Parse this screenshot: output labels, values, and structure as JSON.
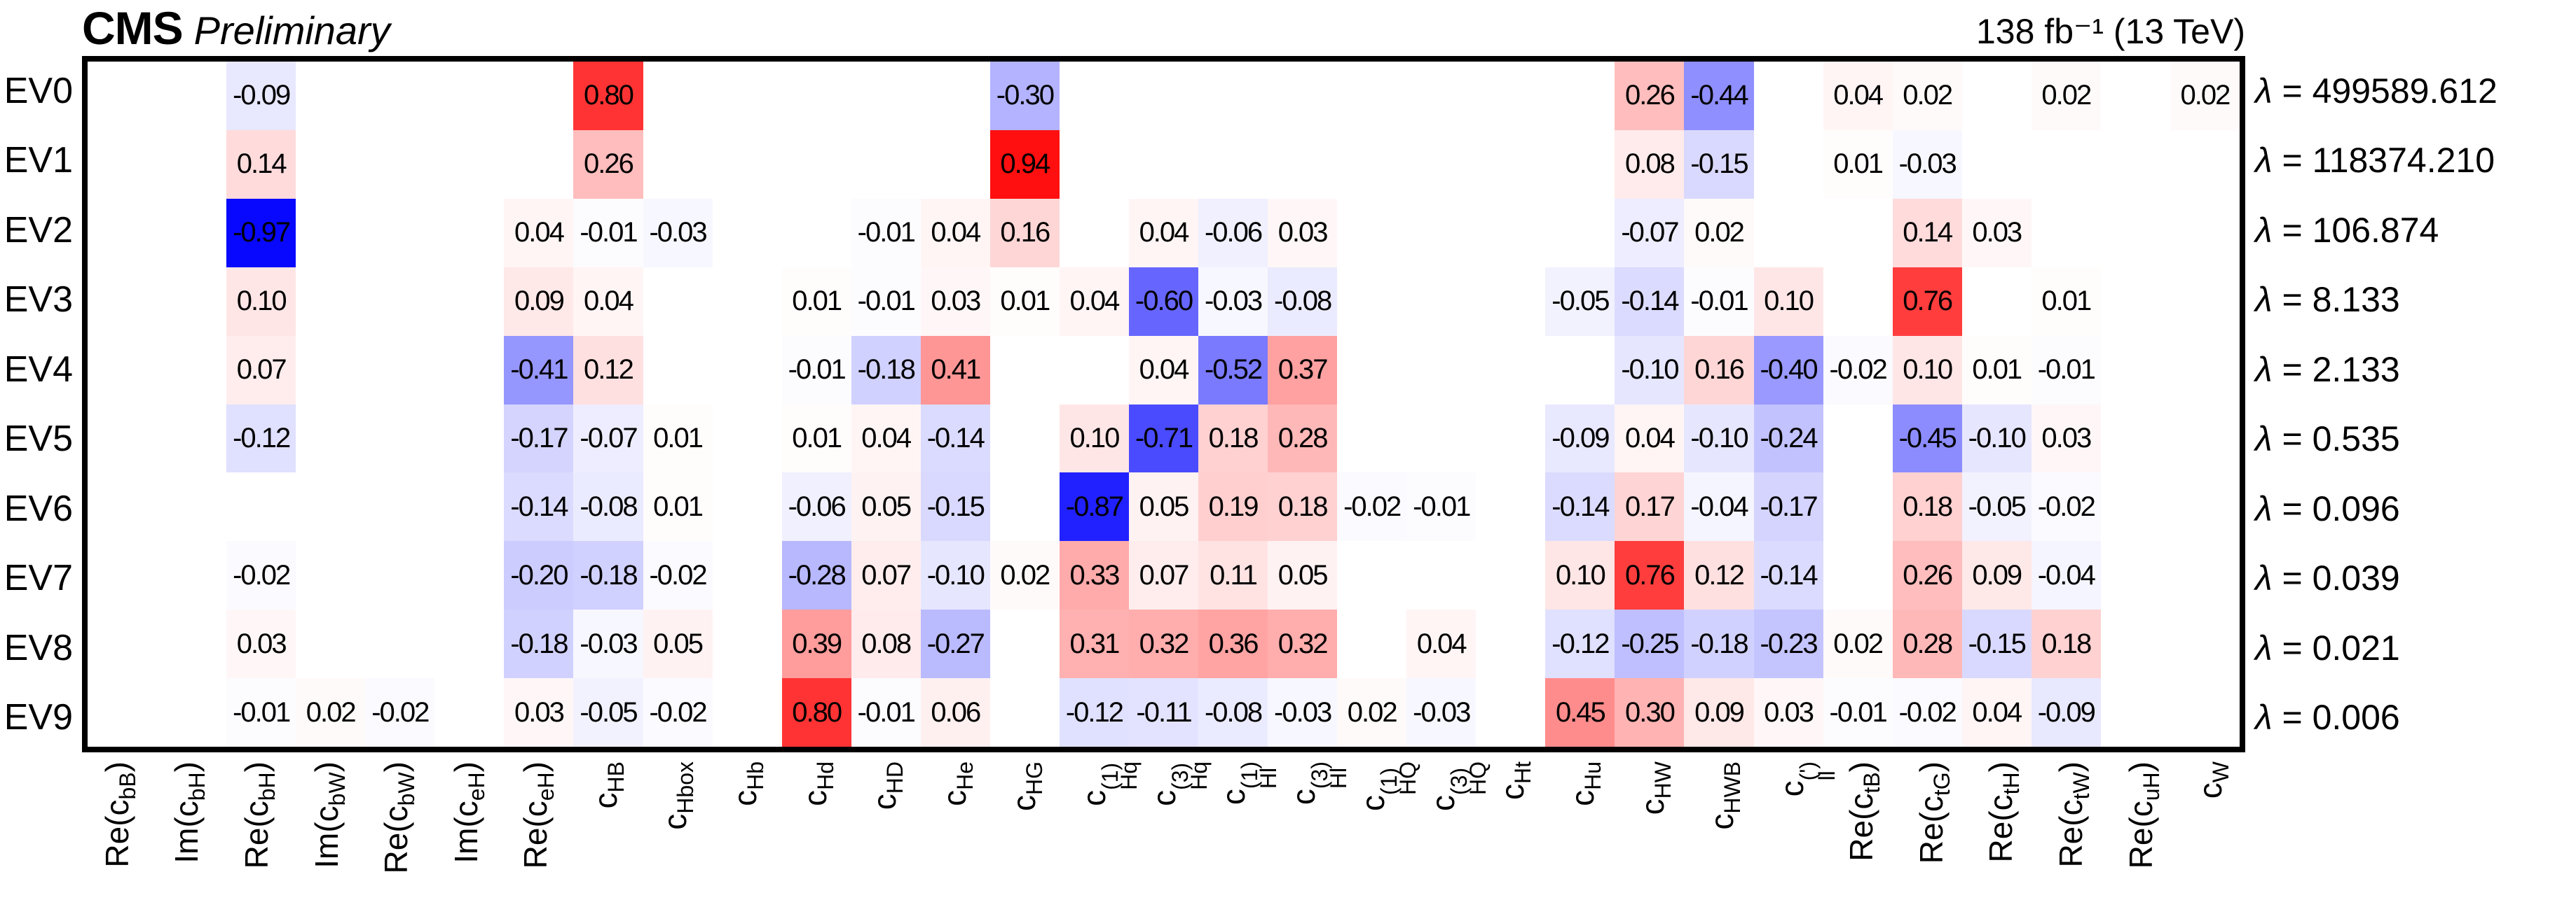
{
  "header": {
    "experiment": "CMS",
    "status": "Preliminary",
    "luminosity": "138 fb⁻¹ (13 TeV)"
  },
  "chart_data": {
    "type": "heatmap",
    "title": "Principal component decomposition of SMEFT Wilson coefficients",
    "lambda_symbol": "λ",
    "lambda_equals": " = ",
    "colormap": {
      "negative": "#0000ff",
      "zero": "#ffffff",
      "positive": "#ff0000",
      "range": [
        -1,
        1
      ]
    },
    "grid": false,
    "columns": [
      {
        "label_text": "Re(c_bB)",
        "pre": "Re(c",
        "sub": "bB",
        "sup": "",
        "post": ")"
      },
      {
        "label_text": "Im(c_bH)",
        "pre": "Im(c",
        "sub": "bH",
        "sup": "",
        "post": ")"
      },
      {
        "label_text": "Re(c_bH)",
        "pre": "Re(c",
        "sub": "bH",
        "sup": "",
        "post": ")"
      },
      {
        "label_text": "Im(c_bW)",
        "pre": "Im(c",
        "sub": "bW",
        "sup": "",
        "post": ")"
      },
      {
        "label_text": "Re(c_bW)",
        "pre": "Re(c",
        "sub": "bW",
        "sup": "",
        "post": ")"
      },
      {
        "label_text": "Im(c_eH)",
        "pre": "Im(c",
        "sub": "eH",
        "sup": "",
        "post": ")"
      },
      {
        "label_text": "Re(c_eH)",
        "pre": "Re(c",
        "sub": "eH",
        "sup": "",
        "post": ")"
      },
      {
        "label_text": "c_HB",
        "pre": "c",
        "sub": "HB",
        "sup": "",
        "post": ""
      },
      {
        "label_text": "c_Hbox",
        "pre": "c",
        "sub": "Hbox",
        "sup": "",
        "post": ""
      },
      {
        "label_text": "c_Hb",
        "pre": "c",
        "sub": "Hb",
        "sup": "",
        "post": ""
      },
      {
        "label_text": "c_Hd",
        "pre": "c",
        "sub": "Hd",
        "sup": "",
        "post": ""
      },
      {
        "label_text": "c_HD",
        "pre": "c",
        "sub": "HD",
        "sup": "",
        "post": ""
      },
      {
        "label_text": "c_He",
        "pre": "c",
        "sub": "He",
        "sup": "",
        "post": ""
      },
      {
        "label_text": "c_HG",
        "pre": "c",
        "sub": "HG",
        "sup": "",
        "post": ""
      },
      {
        "label_text": "c_Hq^(1)",
        "pre": "c",
        "sub": "Hq",
        "sup": "(1)",
        "post": ""
      },
      {
        "label_text": "c_Hq^(3)",
        "pre": "c",
        "sub": "Hq",
        "sup": "(3)",
        "post": ""
      },
      {
        "label_text": "c_Hl^(1)",
        "pre": "c",
        "sub": "Hl",
        "sup": "(1)",
        "post": ""
      },
      {
        "label_text": "c_Hl^(3)",
        "pre": "c",
        "sub": "Hl",
        "sup": "(3)",
        "post": ""
      },
      {
        "label_text": "c_HQ^(1)",
        "pre": "c",
        "sub": "HQ",
        "sup": "(1)",
        "post": ""
      },
      {
        "label_text": "c_HQ^(3)",
        "pre": "c",
        "sub": "HQ",
        "sup": "(3)",
        "post": ""
      },
      {
        "label_text": "c_Ht",
        "pre": "c",
        "sub": "Ht",
        "sup": "",
        "post": ""
      },
      {
        "label_text": "c_Hu",
        "pre": "c",
        "sub": "Hu",
        "sup": "",
        "post": ""
      },
      {
        "label_text": "c_HW",
        "pre": "c",
        "sub": "HW",
        "sup": "",
        "post": ""
      },
      {
        "label_text": "c_HWB",
        "pre": "c",
        "sub": "HWB",
        "sup": "",
        "post": ""
      },
      {
        "label_text": "c_ll^(')",
        "pre": "c",
        "sub": "ll",
        "sup": "(')",
        "post": ""
      },
      {
        "label_text": "Re(c_tB)",
        "pre": "Re(c",
        "sub": "tB",
        "sup": "",
        "post": ")"
      },
      {
        "label_text": "Re(c_tG)",
        "pre": "Re(c",
        "sub": "tG",
        "sup": "",
        "post": ")"
      },
      {
        "label_text": "Re(c_tH)",
        "pre": "Re(c",
        "sub": "tH",
        "sup": "",
        "post": ")"
      },
      {
        "label_text": "Re(c_tW)",
        "pre": "Re(c",
        "sub": "tW",
        "sup": "",
        "post": ")"
      },
      {
        "label_text": "Re(c_uH)",
        "pre": "Re(c",
        "sub": "uH",
        "sup": "",
        "post": ")"
      },
      {
        "label_text": "c_W",
        "pre": "c",
        "sub": "W",
        "sup": "",
        "post": ""
      }
    ],
    "rows": [
      {
        "label": "EV0",
        "lambda": "499589.612",
        "values": [
          null,
          null,
          -0.09,
          null,
          null,
          null,
          null,
          0.8,
          null,
          null,
          null,
          null,
          null,
          -0.3,
          null,
          null,
          null,
          null,
          null,
          null,
          null,
          null,
          0.26,
          -0.44,
          null,
          0.04,
          0.02,
          null,
          0.02,
          null,
          0.02
        ]
      },
      {
        "label": "EV1",
        "lambda": "118374.210",
        "values": [
          null,
          null,
          0.14,
          null,
          null,
          null,
          null,
          0.26,
          null,
          null,
          null,
          null,
          null,
          0.94,
          null,
          null,
          null,
          null,
          null,
          null,
          null,
          null,
          0.08,
          -0.15,
          null,
          0.01,
          -0.03,
          null,
          null,
          null,
          null
        ]
      },
      {
        "label": "EV2",
        "lambda": "106.874",
        "values": [
          null,
          null,
          -0.97,
          null,
          null,
          null,
          0.04,
          -0.01,
          -0.03,
          null,
          null,
          -0.01,
          0.04,
          0.16,
          null,
          0.04,
          -0.06,
          0.03,
          null,
          null,
          null,
          null,
          -0.07,
          0.02,
          null,
          null,
          0.14,
          0.03,
          null,
          null,
          null
        ]
      },
      {
        "label": "EV3",
        "lambda": "8.133",
        "values": [
          null,
          null,
          0.1,
          null,
          null,
          null,
          0.09,
          0.04,
          null,
          null,
          0.01,
          -0.01,
          0.03,
          0.01,
          0.04,
          -0.6,
          -0.03,
          -0.08,
          null,
          null,
          null,
          -0.05,
          -0.14,
          -0.01,
          0.1,
          null,
          0.76,
          null,
          0.01,
          null,
          null
        ]
      },
      {
        "label": "EV4",
        "lambda": "2.133",
        "values": [
          null,
          null,
          0.07,
          null,
          null,
          null,
          -0.41,
          0.12,
          null,
          null,
          -0.01,
          -0.18,
          0.41,
          null,
          null,
          0.04,
          -0.52,
          0.37,
          null,
          null,
          null,
          null,
          -0.1,
          0.16,
          -0.4,
          -0.02,
          0.1,
          0.01,
          -0.01,
          null,
          null
        ]
      },
      {
        "label": "EV5",
        "lambda": "0.535",
        "values": [
          null,
          null,
          -0.12,
          null,
          null,
          null,
          -0.17,
          -0.07,
          0.01,
          null,
          0.01,
          0.04,
          -0.14,
          null,
          0.1,
          -0.71,
          0.18,
          0.28,
          null,
          null,
          null,
          -0.09,
          0.04,
          -0.1,
          -0.24,
          null,
          -0.45,
          -0.1,
          0.03,
          null,
          null
        ]
      },
      {
        "label": "EV6",
        "lambda": "0.096",
        "values": [
          null,
          null,
          null,
          null,
          null,
          null,
          -0.14,
          -0.08,
          0.01,
          null,
          -0.06,
          0.05,
          -0.15,
          null,
          -0.87,
          0.05,
          0.19,
          0.18,
          -0.02,
          -0.01,
          null,
          -0.14,
          0.17,
          -0.04,
          -0.17,
          null,
          0.18,
          -0.05,
          -0.02,
          null,
          null
        ]
      },
      {
        "label": "EV7",
        "lambda": "0.039",
        "values": [
          null,
          null,
          -0.02,
          null,
          null,
          null,
          -0.2,
          -0.18,
          -0.02,
          null,
          -0.28,
          0.07,
          -0.1,
          0.02,
          0.33,
          0.07,
          0.11,
          0.05,
          null,
          null,
          null,
          0.1,
          0.76,
          0.12,
          -0.14,
          null,
          0.26,
          0.09,
          -0.04,
          null,
          null
        ]
      },
      {
        "label": "EV8",
        "lambda": "0.021",
        "values": [
          null,
          null,
          0.03,
          null,
          null,
          null,
          -0.18,
          -0.03,
          0.05,
          null,
          0.39,
          0.08,
          -0.27,
          null,
          0.31,
          0.32,
          0.36,
          0.32,
          null,
          0.04,
          null,
          -0.12,
          -0.25,
          -0.18,
          -0.23,
          0.02,
          0.28,
          -0.15,
          0.18,
          null,
          null
        ]
      },
      {
        "label": "EV9",
        "lambda": "0.006",
        "values": [
          null,
          null,
          -0.01,
          0.02,
          -0.02,
          null,
          0.03,
          -0.05,
          -0.02,
          null,
          0.8,
          -0.01,
          0.06,
          null,
          -0.12,
          -0.11,
          -0.08,
          -0.03,
          0.02,
          -0.03,
          null,
          0.45,
          0.3,
          0.09,
          0.03,
          -0.01,
          -0.02,
          0.04,
          -0.09,
          null,
          null
        ]
      }
    ]
  }
}
